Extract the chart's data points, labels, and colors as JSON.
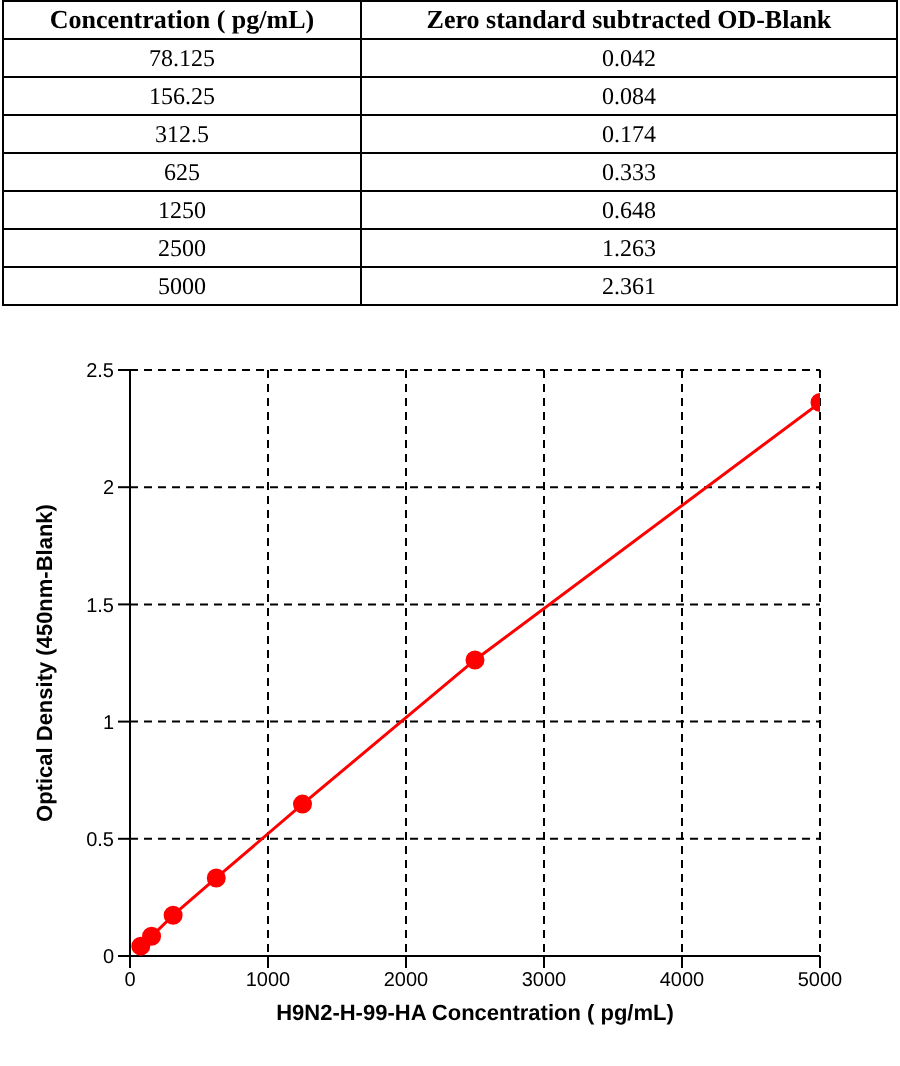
{
  "chart_data": [
    {
      "type": "other",
      "xlabel": "Concentration ( pg/mL)",
      "ylabel": "Zero standard subtracted OD-Blank",
      "categories": [
        "78.125",
        "156.25",
        "312.5",
        "625",
        "1250",
        "2500",
        "5000"
      ],
      "values": [
        0.042,
        0.084,
        0.174,
        0.333,
        0.648,
        1.263,
        2.361
      ],
      "data_labels": true
    },
    {
      "type": "line",
      "xlabel": "H9N2-H-99-HA Concentration ( pg/mL)",
      "ylabel": "Optical Density (450nm-Blank)",
      "x": [
        78.125,
        156.25,
        312.5,
        625,
        1250,
        2500,
        5000
      ],
      "series": [
        {
          "color": "#ff0000",
          "values": [
            0.042,
            0.084,
            0.174,
            0.333,
            0.648,
            1.263,
            2.361
          ]
        }
      ],
      "xlim": [
        0,
        5000
      ],
      "xticks": [
        0,
        1000,
        2000,
        3000,
        4000,
        5000
      ],
      "ylim": [
        0,
        2.5
      ],
      "yticks": [
        0,
        0.5,
        1,
        1.5,
        2,
        2.5
      ],
      "grid": true,
      "marker": "circle",
      "line_style": "solid"
    }
  ]
}
